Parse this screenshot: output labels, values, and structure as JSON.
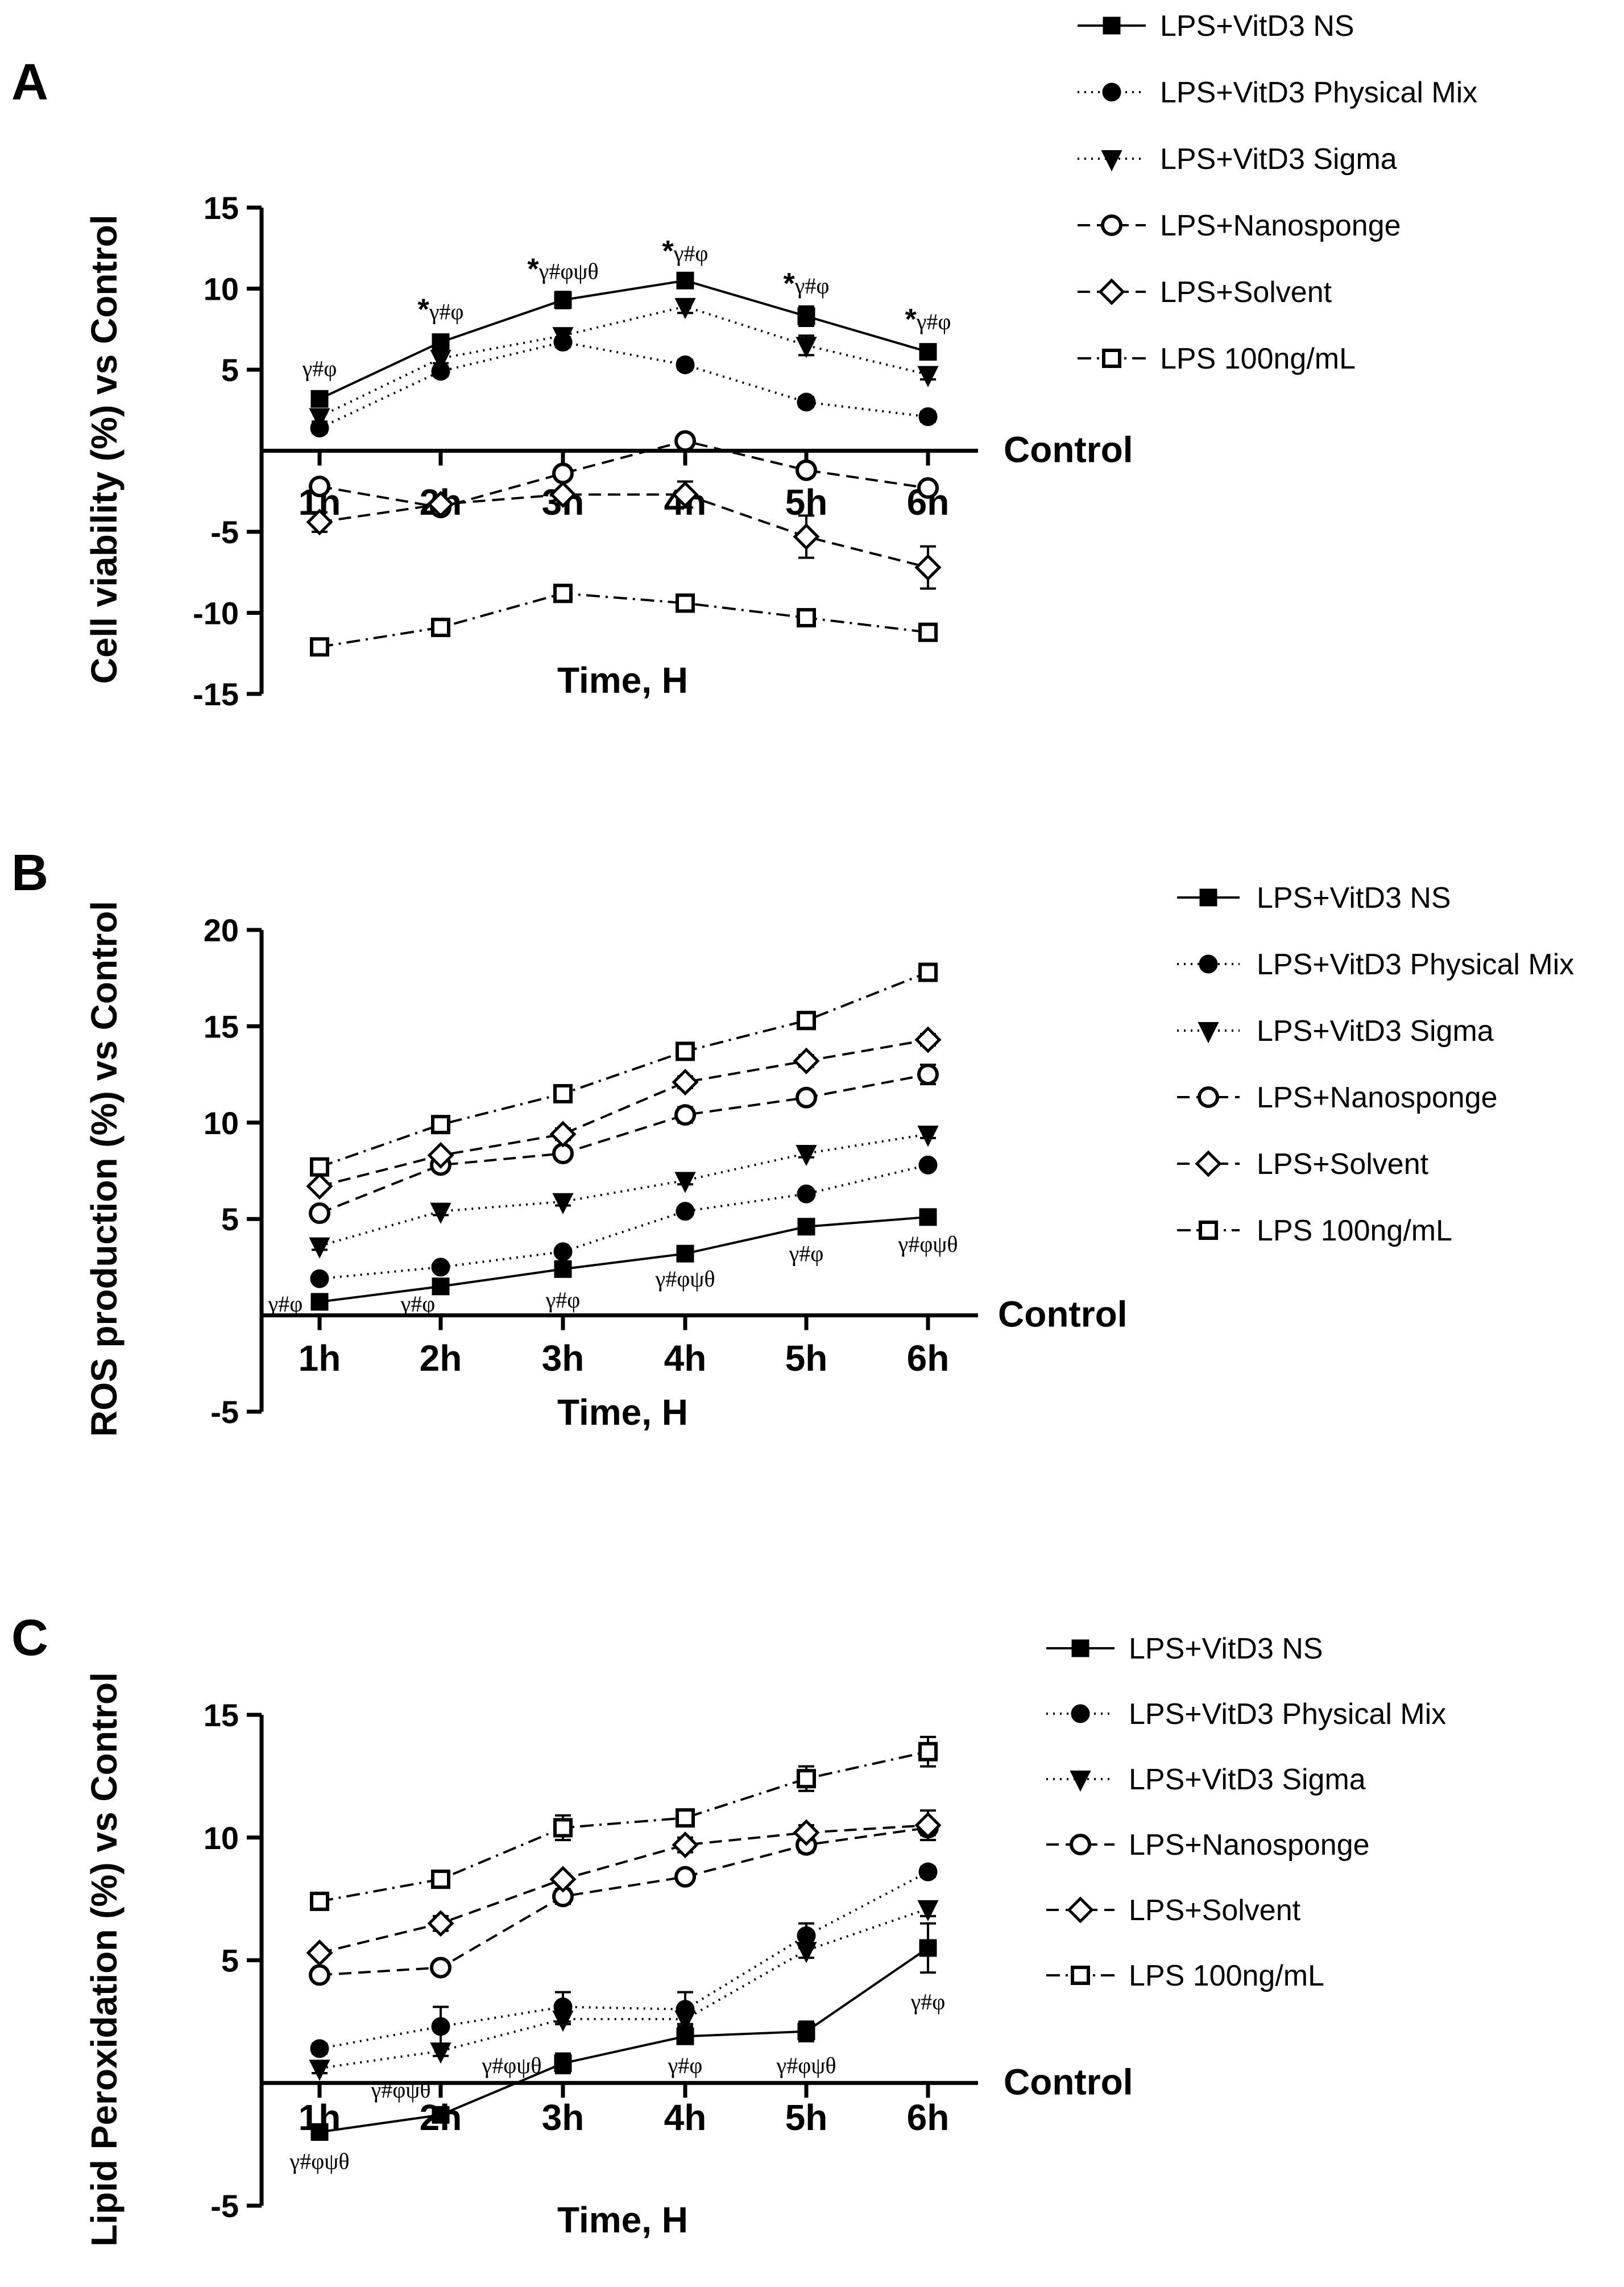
{
  "chart_data": [
    {
      "panel": "A",
      "type": "line",
      "ylabel": "Cell viability (%) vs Control",
      "xlabel": "Time, H",
      "baseline_label": "Control",
      "categories": [
        "1h",
        "2h",
        "3h",
        "4h",
        "5h",
        "6h"
      ],
      "ylim": [
        -15,
        15
      ],
      "yticks": [
        "15",
        "10",
        "5",
        "-5",
        "-10",
        "-15"
      ],
      "yticks_values": [
        15,
        10,
        5,
        -5,
        -10,
        -15
      ],
      "legend": [
        "LPS+VitD3 NS",
        "LPS+VitD3 Physical Mix",
        "LPS+VitD3 Sigma",
        "LPS+Nanosponge",
        "LPS+Solvent",
        "LPS 100ng/mL"
      ],
      "series": [
        {
          "name": "LPS+VitD3 NS",
          "marker": "square-filled",
          "dash": "solid",
          "values": [
            3.2,
            6.7,
            9.3,
            10.5,
            8.3,
            6.1
          ],
          "errors": [
            0.4,
            0.4,
            0.5,
            0.4,
            0.6,
            0.4
          ]
        },
        {
          "name": "LPS+VitD3 Physical Mix",
          "marker": "circle-filled",
          "dash": "dotted",
          "values": [
            1.4,
            4.9,
            6.7,
            5.3,
            3.0,
            2.1
          ],
          "errors": [
            0.3,
            0.3,
            0.3,
            0.3,
            0.3,
            0.3
          ]
        },
        {
          "name": "LPS+VitD3 Sigma",
          "marker": "triangle-down-filled",
          "dash": "dotted",
          "values": [
            2.1,
            5.7,
            7.1,
            8.9,
            6.5,
            4.7
          ],
          "errors": [
            0.3,
            0.3,
            0.3,
            0.4,
            0.6,
            0.3
          ]
        },
        {
          "name": "LPS+Nanosponge",
          "marker": "circle-open",
          "dash": "dashed",
          "values": [
            -2.2,
            -3.5,
            -1.4,
            0.6,
            -1.2,
            -2.3
          ],
          "errors": [
            0.3,
            0.3,
            0.3,
            0.4,
            0.3,
            0.3
          ]
        },
        {
          "name": "LPS+Solvent",
          "marker": "diamond-open",
          "dash": "dashed",
          "values": [
            -4.4,
            -3.3,
            -2.7,
            -2.7,
            -5.3,
            -7.2
          ],
          "errors": [
            0.6,
            0.3,
            0.3,
            0.8,
            1.3,
            1.3
          ]
        },
        {
          "name": "LPS 100ng/mL",
          "marker": "square-open",
          "dash": "dashdot",
          "values": [
            -12.1,
            -10.9,
            -8.8,
            -9.4,
            -10.3,
            -11.2
          ],
          "errors": [
            0.3,
            0.3,
            0.4,
            0.3,
            0.3,
            0.3
          ]
        }
      ],
      "annotations": [
        {
          "cat": 0,
          "y": 4.6,
          "star": "",
          "text": "γ#φ"
        },
        {
          "cat": 1,
          "y": 8.1,
          "star": "*",
          "text": "γ#φ"
        },
        {
          "cat": 2,
          "y": 10.6,
          "star": "*",
          "text": "γ#φψθ"
        },
        {
          "cat": 3,
          "y": 11.7,
          "star": "*",
          "text": "γ#φ"
        },
        {
          "cat": 4,
          "y": 9.7,
          "star": "*",
          "text": "γ#φ"
        },
        {
          "cat": 5,
          "y": 7.5,
          "star": "*",
          "text": "γ#φ"
        }
      ]
    },
    {
      "panel": "B",
      "type": "line",
      "ylabel": "ROS production (%) vs Control",
      "xlabel": "Time, H",
      "baseline_label": "Control",
      "categories": [
        "1h",
        "2h",
        "3h",
        "4h",
        "5h",
        "6h"
      ],
      "ylim": [
        -5,
        20
      ],
      "yticks": [
        "20",
        "15",
        "10",
        "5",
        "-5"
      ],
      "yticks_values": [
        20,
        15,
        10,
        5,
        -5
      ],
      "legend": [
        "LPS+VitD3 NS",
        "LPS+VitD3 Physical Mix",
        "LPS+VitD3 Sigma",
        "LPS+Nanosponge",
        "LPS+Solvent",
        "LPS 100ng/mL"
      ],
      "series": [
        {
          "name": "LPS+VitD3 NS",
          "marker": "square-filled",
          "dash": "solid",
          "values": [
            0.7,
            1.5,
            2.4,
            3.2,
            4.6,
            5.1
          ],
          "errors": [
            0.2,
            0.2,
            0.2,
            0.2,
            0.2,
            0.2
          ]
        },
        {
          "name": "LPS+VitD3 Physical Mix",
          "marker": "circle-filled",
          "dash": "dotted",
          "values": [
            1.9,
            2.5,
            3.3,
            5.4,
            6.3,
            7.8
          ],
          "errors": [
            0.2,
            0.2,
            0.2,
            0.2,
            0.2,
            0.2
          ]
        },
        {
          "name": "LPS+VitD3 Sigma",
          "marker": "triangle-down-filled",
          "dash": "dotted",
          "values": [
            3.6,
            5.4,
            5.9,
            7.0,
            8.4,
            9.4
          ],
          "errors": [
            0.2,
            0.2,
            0.2,
            0.2,
            0.2,
            0.2
          ]
        },
        {
          "name": "LPS+Nanosponge",
          "marker": "circle-open",
          "dash": "dashed",
          "values": [
            5.3,
            7.8,
            8.4,
            10.4,
            11.3,
            12.5
          ],
          "errors": [
            0.2,
            0.2,
            0.3,
            0.4,
            0.3,
            0.5
          ]
        },
        {
          "name": "LPS+Solvent",
          "marker": "diamond-open",
          "dash": "dashed",
          "values": [
            6.7,
            8.3,
            9.4,
            12.1,
            13.2,
            14.3
          ],
          "errors": [
            0.2,
            0.2,
            0.3,
            0.3,
            0.3,
            0.3
          ]
        },
        {
          "name": "LPS 100ng/mL",
          "marker": "square-open",
          "dash": "dashdot",
          "values": [
            7.7,
            9.9,
            11.5,
            13.7,
            15.3,
            17.8
          ],
          "errors": [
            0.3,
            0.3,
            0.3,
            0.4,
            0.3,
            0.4
          ]
        }
      ],
      "annotations": [
        {
          "cat": 0,
          "y": 0.2,
          "star": "",
          "text": "γ#φ",
          "dx": -60
        },
        {
          "cat": 1,
          "y": 0.2,
          "star": "",
          "text": "γ#φ",
          "dx": -40
        },
        {
          "cat": 2,
          "y": 0.4,
          "star": "",
          "text": "γ#φ"
        },
        {
          "cat": 3,
          "y": 1.5,
          "star": "",
          "text": "γ#φψθ"
        },
        {
          "cat": 4,
          "y": 2.8,
          "star": "",
          "text": "γ#φ"
        },
        {
          "cat": 5,
          "y": 3.3,
          "star": "",
          "text": "γ#φψθ"
        }
      ]
    },
    {
      "panel": "C",
      "type": "line",
      "ylabel": "Lipid Peroxidation (%) vs Control",
      "xlabel": "Time, H",
      "baseline_label": "Control",
      "categories": [
        "1h",
        "2h",
        "3h",
        "4h",
        "5h",
        "6h"
      ],
      "ylim": [
        -5,
        15
      ],
      "yticks": [
        "15",
        "10",
        "5",
        "-5"
      ],
      "yticks_values": [
        15,
        10,
        5,
        -5
      ],
      "legend": [
        "LPS+VitD3 NS",
        "LPS+VitD3 Physical Mix",
        "LPS+VitD3 Sigma",
        "LPS+Nanosponge",
        "LPS+Solvent",
        "LPS 100ng/mL"
      ],
      "series": [
        {
          "name": "LPS+VitD3 NS",
          "marker": "square-filled",
          "dash": "solid",
          "values": [
            -2.0,
            -1.3,
            0.8,
            1.9,
            2.1,
            5.5
          ],
          "errors": [
            0.2,
            0.2,
            0.4,
            0.3,
            0.4,
            1.0
          ]
        },
        {
          "name": "LPS+VitD3 Physical Mix",
          "marker": "circle-filled",
          "dash": "dotted",
          "values": [
            1.4,
            2.3,
            3.1,
            3.0,
            6.0,
            8.6
          ],
          "errors": [
            0.2,
            0.8,
            0.6,
            0.7,
            0.5,
            0.2
          ]
        },
        {
          "name": "LPS+VitD3 Sigma",
          "marker": "triangle-down-filled",
          "dash": "dotted",
          "values": [
            0.6,
            1.3,
            2.6,
            2.6,
            5.4,
            7.1
          ],
          "errors": [
            0.2,
            0.2,
            0.2,
            0.2,
            0.3,
            0.3
          ]
        },
        {
          "name": "LPS+Nanosponge",
          "marker": "circle-open",
          "dash": "dashed",
          "values": [
            4.4,
            4.7,
            7.6,
            8.4,
            9.7,
            10.4
          ],
          "errors": [
            0.2,
            0.2,
            0.3,
            0.2,
            0.3,
            0.3
          ]
        },
        {
          "name": "LPS+Solvent",
          "marker": "diamond-open",
          "dash": "dashed",
          "values": [
            5.3,
            6.5,
            8.3,
            9.7,
            10.2,
            10.5
          ],
          "errors": [
            0.2,
            0.3,
            0.2,
            0.3,
            0.3,
            0.6
          ]
        },
        {
          "name": "LPS 100ng/mL",
          "marker": "square-open",
          "dash": "dashdot",
          "values": [
            7.4,
            8.3,
            10.4,
            10.8,
            12.4,
            13.5
          ],
          "errors": [
            0.3,
            0.2,
            0.5,
            0.2,
            0.5,
            0.6
          ]
        }
      ],
      "annotations": [
        {
          "cat": 0,
          "y": -3.5,
          "star": "",
          "text": "γ#φψθ",
          "dx": 0
        },
        {
          "cat": 1,
          "y": -0.6,
          "star": "",
          "text": "γ#φψθ",
          "dx": -70
        },
        {
          "cat": 2,
          "y": 0.4,
          "star": "",
          "text": "γ#φψθ",
          "dx": -90
        },
        {
          "cat": 3,
          "y": 0.4,
          "star": "",
          "text": "γ#φ"
        },
        {
          "cat": 4,
          "y": 0.4,
          "star": "",
          "text": "γ#φψθ"
        },
        {
          "cat": 5,
          "y": 3.0,
          "star": "",
          "text": "γ#φ"
        }
      ]
    }
  ]
}
